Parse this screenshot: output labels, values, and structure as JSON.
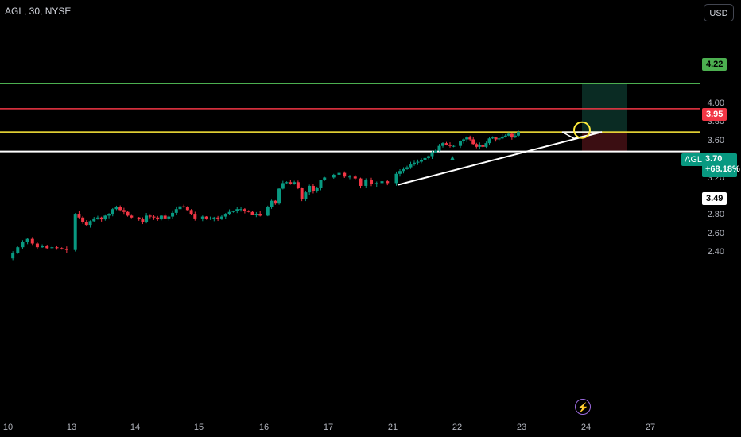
{
  "header": {
    "symbol": "AGL, 30, NYSE",
    "currency": "USD"
  },
  "colors": {
    "up": "#089981",
    "down": "#f23645",
    "target": "#4caf50",
    "stop": "#f23645",
    "entry": "#ffeb3b",
    "support": "#ffffff",
    "trend": "#ffffff"
  },
  "levels": {
    "target": {
      "value": 4.22,
      "label": "4.22"
    },
    "stop": {
      "value": 3.95,
      "label": "3.95"
    },
    "entry": {
      "value": 3.7
    },
    "support": {
      "value": 3.49,
      "label": "3.49"
    }
  },
  "price_tag": {
    "symbol": "AGL",
    "price": "3.70",
    "change": "+68.18%"
  },
  "icons": {
    "flash": "lightning-bolt-icon"
  },
  "chart_data": {
    "type": "candlestick",
    "title": "AGL, 30, NYSE",
    "y_ticks": [
      "4.40",
      "4.00",
      "3.80",
      "3.60",
      "3.40",
      "3.20",
      "3.00",
      "2.80",
      "2.60",
      "2.40"
    ],
    "y_tick_values": [
      4.4,
      4.0,
      3.8,
      3.6,
      3.4,
      3.2,
      3.0,
      2.8,
      2.6,
      2.4
    ],
    "x_ticks": [
      "10",
      "13",
      "14",
      "15",
      "16",
      "17",
      "21",
      "22",
      "23",
      "24",
      "27"
    ],
    "ylim": [
      2.32,
      4.48
    ],
    "grid": false,
    "horizontal_lines": [
      {
        "name": "target",
        "value": 4.22
      },
      {
        "name": "stop",
        "value": 3.95
      },
      {
        "name": "entry",
        "value": 3.7
      },
      {
        "name": "support",
        "value": 3.49
      }
    ],
    "trendline": {
      "from": {
        "day": "21",
        "value": 3.13
      },
      "to": {
        "day": "24",
        "value": 3.7
      }
    },
    "series": [
      {
        "values": [
          2.34,
          2.4,
          2.46,
          2.52,
          2.55,
          2.5,
          2.46,
          2.47,
          2.45,
          2.46,
          2.45,
          2.44,
          2.43
        ]
      },
      {
        "values": [
          2.43,
          2.82,
          2.78,
          2.73,
          2.7,
          2.74,
          2.77,
          2.78,
          2.76,
          2.8,
          2.82,
          2.87,
          2.89,
          2.86,
          2.84,
          2.8,
          2.78
        ]
      },
      {
        "values": [
          2.78,
          2.76,
          2.73,
          2.8,
          2.79,
          2.78,
          2.76,
          2.8,
          2.77,
          2.79,
          2.83,
          2.87,
          2.9,
          2.89,
          2.86,
          2.82,
          2.77
        ]
      },
      {
        "values": [
          2.77,
          2.79,
          2.77,
          2.77,
          2.78,
          2.77,
          2.79,
          2.82,
          2.84,
          2.85,
          2.87,
          2.87,
          2.85,
          2.84,
          2.81,
          2.82,
          2.8
        ]
      },
      {
        "values": [
          2.8,
          2.89,
          2.96,
          2.93,
          3.09,
          3.15,
          3.16,
          3.14,
          3.16,
          3.1,
          2.98,
          3.05,
          3.12,
          3.06,
          3.1,
          3.18,
          3.21
        ]
      },
      {
        "values": [
          3.21,
          3.24,
          3.26,
          3.22,
          3.22,
          3.2,
          3.12,
          3.18,
          3.14,
          3.15,
          3.17,
          3.15
        ]
      },
      {
        "values": [
          3.15,
          3.25,
          3.28,
          3.3,
          3.32,
          3.35,
          3.37,
          3.38,
          3.4,
          3.42,
          3.44,
          3.48,
          3.5,
          3.55,
          3.58,
          3.56,
          3.55,
          3.55
        ]
      },
      {
        "values": [
          3.55,
          3.6,
          3.62,
          3.64,
          3.62,
          3.57,
          3.54,
          3.56,
          3.54,
          3.58,
          3.63,
          3.64,
          3.62,
          3.63,
          3.65,
          3.66,
          3.68,
          3.64,
          3.66,
          3.7
        ]
      }
    ]
  }
}
